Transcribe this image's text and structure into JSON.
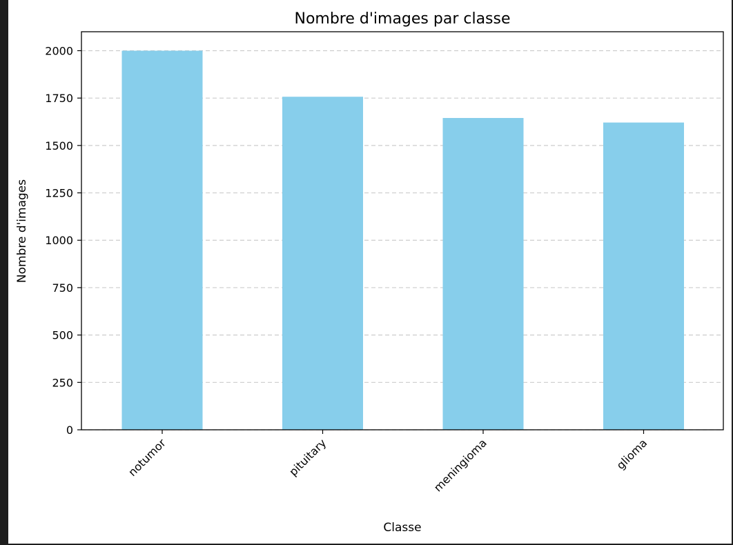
{
  "chart_data": {
    "type": "bar",
    "title": "Nombre d'images par classe",
    "xlabel": "Classe",
    "ylabel": "Nombre d'images",
    "categories": [
      "notumor",
      "pituitary",
      "meningioma",
      "glioma"
    ],
    "values": [
      2000,
      1757,
      1645,
      1621
    ],
    "ylim": [
      0,
      2100
    ],
    "yticks": [
      0,
      250,
      500,
      750,
      1000,
      1250,
      1500,
      1750,
      2000
    ],
    "grid": "y-dashed",
    "bar_color": "#87CEEB",
    "grid_color": "#cccccc",
    "x_tick_rotation_deg": 45
  }
}
